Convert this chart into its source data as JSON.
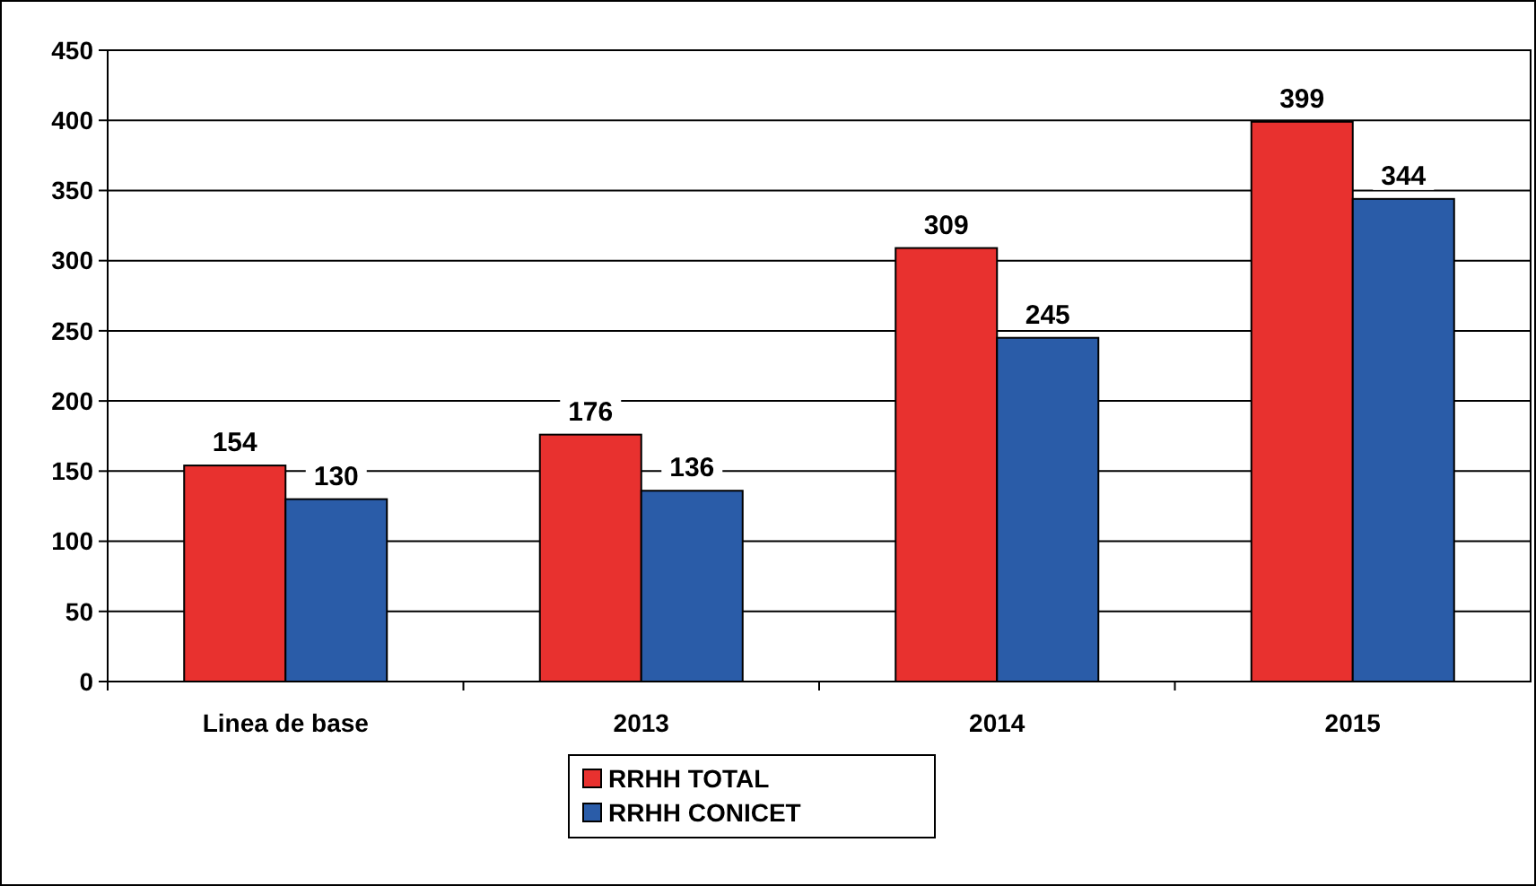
{
  "chart_data": {
    "type": "bar",
    "categories": [
      "Linea de base",
      "2013",
      "2014",
      "2015"
    ],
    "series": [
      {
        "name": "RRHH TOTAL",
        "color": "#e8312f",
        "values": [
          154,
          176,
          309,
          399
        ]
      },
      {
        "name": "RRHH CONICET",
        "color": "#2a5ca8",
        "values": [
          130,
          136,
          245,
          344
        ]
      }
    ],
    "ylim": [
      0,
      450
    ],
    "yticks": [
      0,
      50,
      100,
      150,
      200,
      250,
      300,
      350,
      400,
      450
    ],
    "grid": "y",
    "legend": "bottom",
    "data_labels": true
  }
}
